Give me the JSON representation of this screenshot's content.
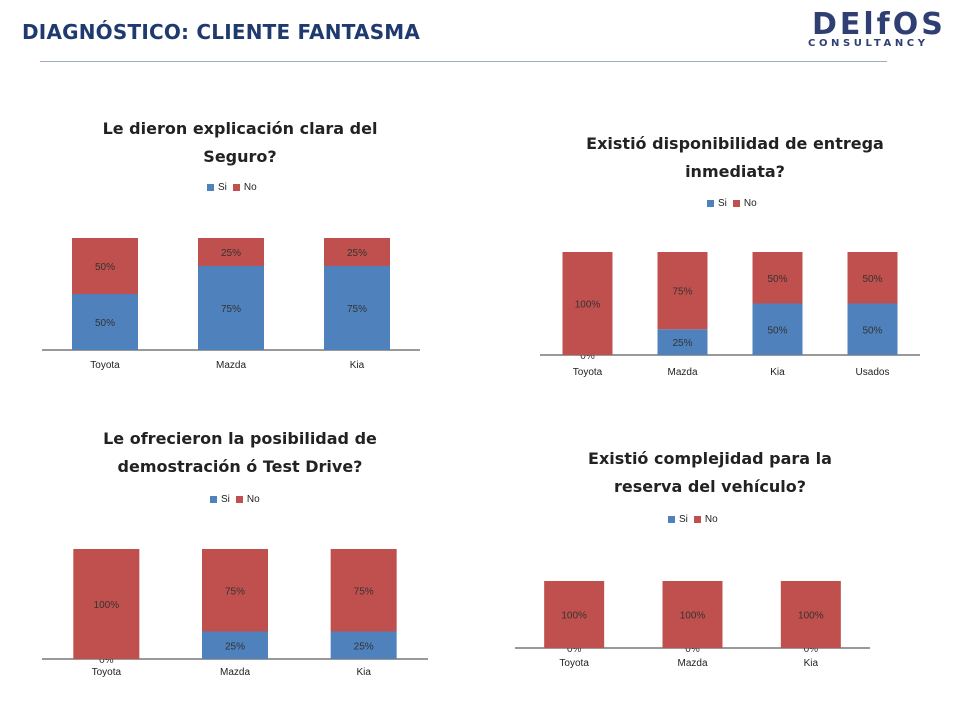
{
  "header": {
    "title": "DIAGNÓSTICO:  CLIENTE FANTASMA",
    "logo_main": "DElfOS",
    "logo_sub": "CONSULTANCY"
  },
  "colors": {
    "si": "#4f81bd",
    "no": "#c0504d",
    "axis": "#333333"
  },
  "chart_data": [
    {
      "type": "bar",
      "stacked": true,
      "title_lines": [
        "Le dieron explicación clara del",
        "Seguro?"
      ],
      "legend": [
        "Si",
        "No"
      ],
      "categories": [
        "Toyota",
        "Mazda",
        "Kia"
      ],
      "series": [
        {
          "name": "Si",
          "values": [
            50,
            75,
            75
          ],
          "labels": [
            "50%",
            "75%",
            "75%"
          ]
        },
        {
          "name": "No",
          "values": [
            50,
            25,
            25
          ],
          "labels": [
            "50%",
            "25%",
            "25%"
          ]
        }
      ],
      "ylim": [
        0,
        100
      ]
    },
    {
      "type": "bar",
      "stacked": true,
      "title_lines": [
        "Existió disponibilidad  de entrega",
        "inmediata?"
      ],
      "legend": [
        "Si",
        "No"
      ],
      "categories": [
        "Toyota",
        "Mazda",
        "Kia",
        "Usados"
      ],
      "series": [
        {
          "name": "Si",
          "values": [
            0,
            25,
            50,
            50
          ],
          "labels": [
            "0%",
            "25%",
            "50%",
            "50%"
          ]
        },
        {
          "name": "No",
          "values": [
            100,
            75,
            50,
            50
          ],
          "labels": [
            "100%",
            "75%",
            "50%",
            "50%"
          ]
        }
      ],
      "ylim": [
        0,
        100
      ]
    },
    {
      "type": "bar",
      "stacked": true,
      "title_lines": [
        "Le ofrecieron la posibilidad  de",
        "demostración ó Test Drive?"
      ],
      "legend": [
        "Si",
        "No"
      ],
      "categories": [
        "Toyota",
        "Mazda",
        "Kia"
      ],
      "series": [
        {
          "name": "Si",
          "values": [
            0,
            25,
            25
          ],
          "labels": [
            "0%",
            "25%",
            "25%"
          ]
        },
        {
          "name": "No",
          "values": [
            100,
            75,
            75
          ],
          "labels": [
            "100%",
            "75%",
            "75%"
          ]
        }
      ],
      "ylim": [
        0,
        100
      ]
    },
    {
      "type": "bar",
      "stacked": true,
      "title_lines": [
        "Existió complejidad para la",
        "reserva del vehículo?"
      ],
      "legend": [
        "Si",
        "No"
      ],
      "categories": [
        "Toyota",
        "Mazda",
        "Kia"
      ],
      "series": [
        {
          "name": "Si",
          "values": [
            0,
            0,
            0
          ],
          "labels": [
            "0%",
            "0%",
            "0%"
          ]
        },
        {
          "name": "No",
          "values": [
            100,
            100,
            100
          ],
          "labels": [
            "100%",
            "100%",
            "100%"
          ]
        }
      ],
      "ylim": [
        0,
        100
      ]
    }
  ]
}
